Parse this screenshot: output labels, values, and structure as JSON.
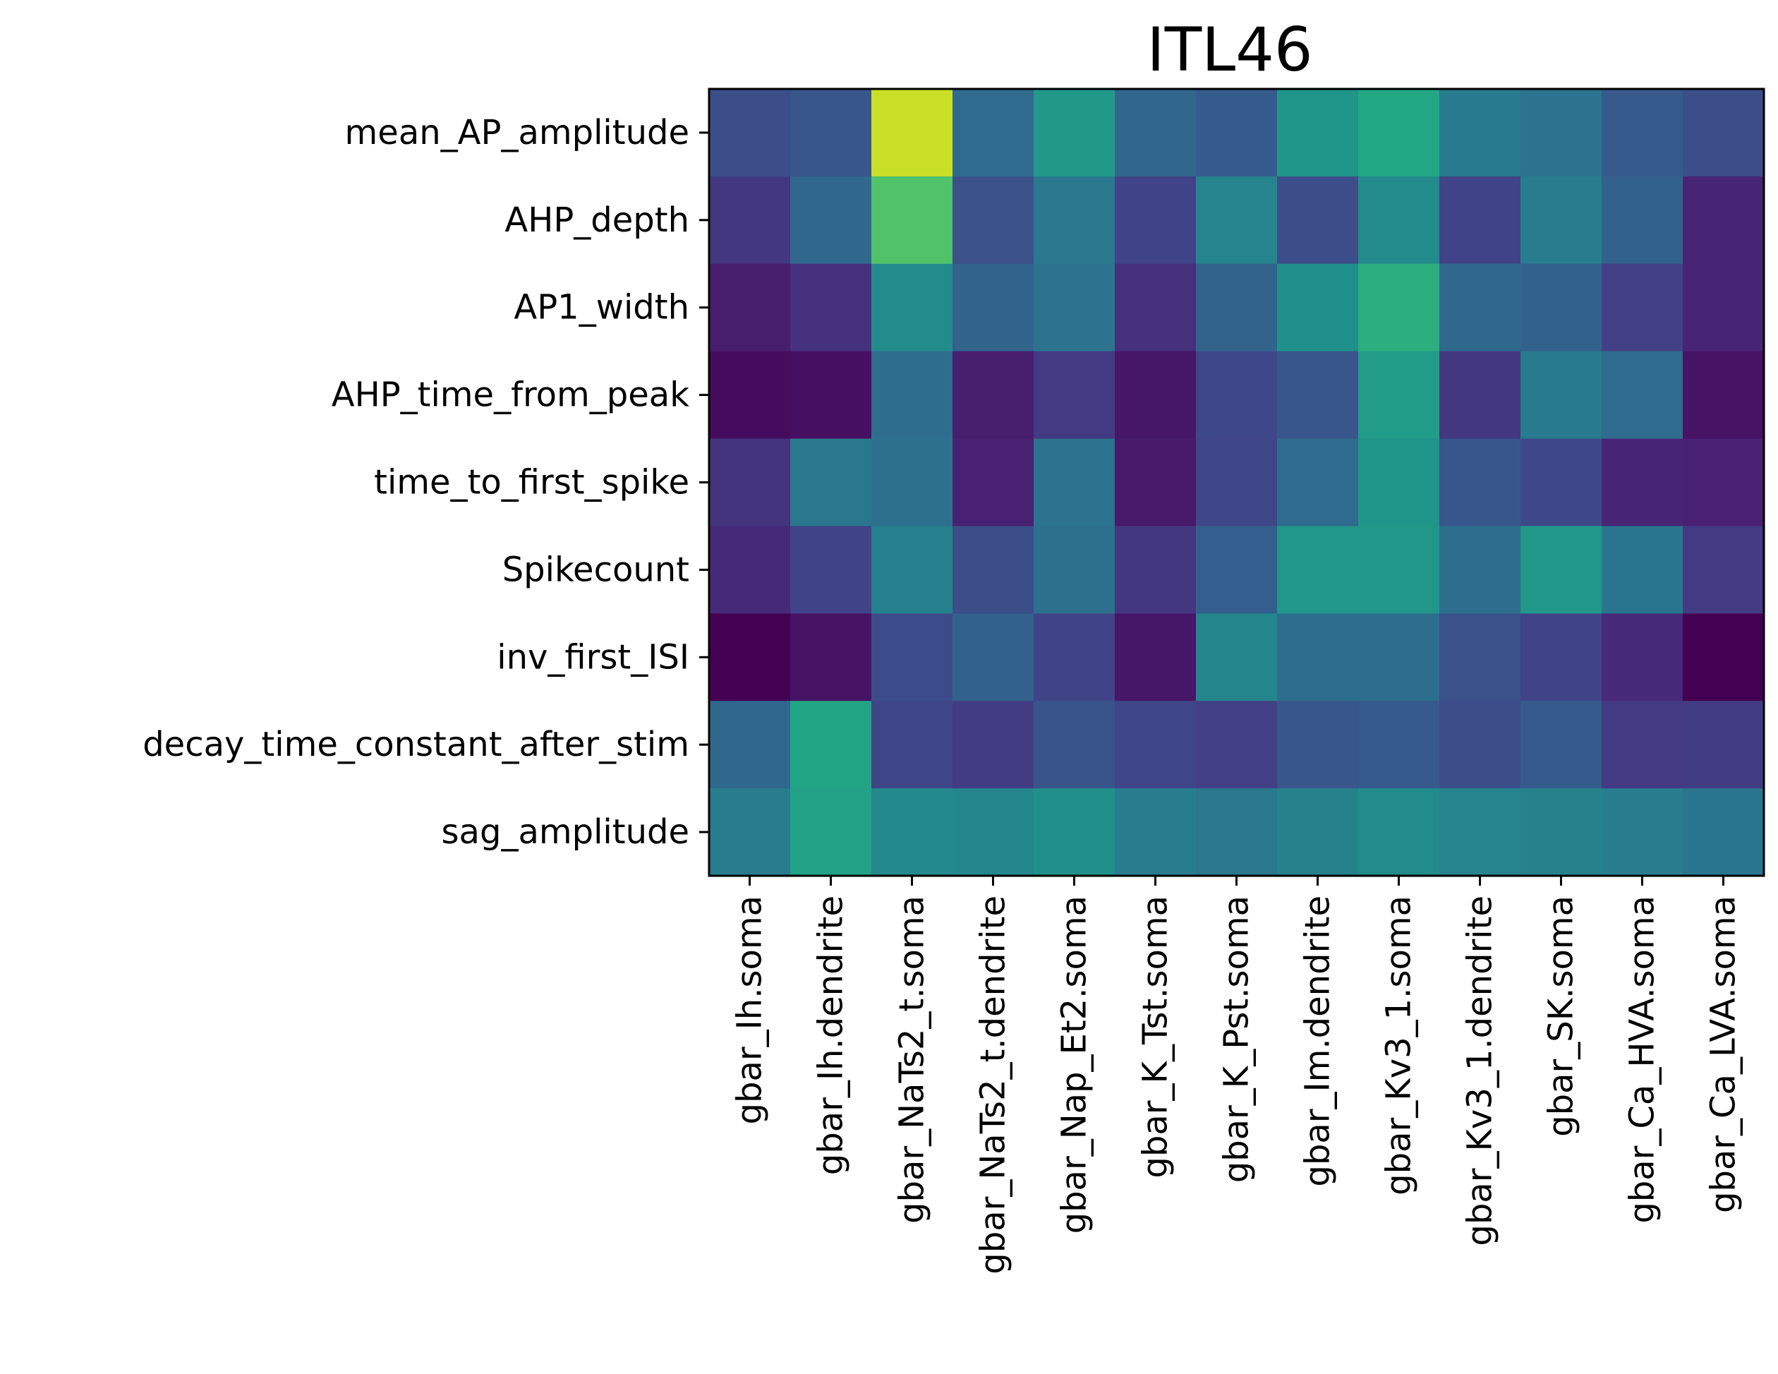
{
  "chart_data": {
    "type": "heatmap",
    "title": "ITL46",
    "xlabel": "",
    "ylabel": "",
    "colormap": "viridis",
    "x_categories": [
      "gbar_Ih.soma",
      "gbar_Ih.dendrite",
      "gbar_NaTs2_t.soma",
      "gbar_NaTs2_t.dendrite",
      "gbar_Nap_Et2.soma",
      "gbar_K_Tst.soma",
      "gbar_K_Pst.soma",
      "gbar_Im.dendrite",
      "gbar_Kv3_1.soma",
      "gbar_Kv3_1.dendrite",
      "gbar_SK.soma",
      "gbar_Ca_HVA.soma",
      "gbar_Ca_LVA.soma"
    ],
    "y_categories": [
      "mean_AP_amplitude",
      "AHP_depth",
      "AP1_width",
      "AHP_time_from_peak",
      "time_to_first_spike",
      "Spikecount",
      "inv_first_ISI",
      "decay_time_constant_after_stim",
      "sag_amplitude"
    ],
    "values": [
      [
        0.24,
        0.27,
        0.92,
        0.35,
        0.54,
        0.33,
        0.29,
        0.52,
        0.6,
        0.41,
        0.38,
        0.28,
        0.24
      ],
      [
        0.16,
        0.34,
        0.72,
        0.25,
        0.4,
        0.2,
        0.45,
        0.24,
        0.48,
        0.2,
        0.42,
        0.31,
        0.1
      ],
      [
        0.08,
        0.14,
        0.48,
        0.32,
        0.38,
        0.14,
        0.32,
        0.5,
        0.63,
        0.34,
        0.31,
        0.19,
        0.1
      ],
      [
        0.03,
        0.04,
        0.36,
        0.08,
        0.17,
        0.06,
        0.22,
        0.27,
        0.55,
        0.16,
        0.41,
        0.35,
        0.05
      ],
      [
        0.15,
        0.4,
        0.37,
        0.09,
        0.38,
        0.07,
        0.21,
        0.35,
        0.52,
        0.27,
        0.22,
        0.1,
        0.09
      ],
      [
        0.12,
        0.2,
        0.43,
        0.24,
        0.37,
        0.16,
        0.3,
        0.53,
        0.53,
        0.36,
        0.53,
        0.39,
        0.17
      ],
      [
        0.0,
        0.05,
        0.23,
        0.31,
        0.2,
        0.06,
        0.46,
        0.36,
        0.36,
        0.25,
        0.2,
        0.12,
        0.0
      ],
      [
        0.34,
        0.59,
        0.21,
        0.18,
        0.26,
        0.21,
        0.19,
        0.27,
        0.28,
        0.24,
        0.29,
        0.17,
        0.18
      ],
      [
        0.42,
        0.58,
        0.47,
        0.46,
        0.5,
        0.42,
        0.4,
        0.44,
        0.48,
        0.45,
        0.44,
        0.42,
        0.39
      ]
    ]
  }
}
